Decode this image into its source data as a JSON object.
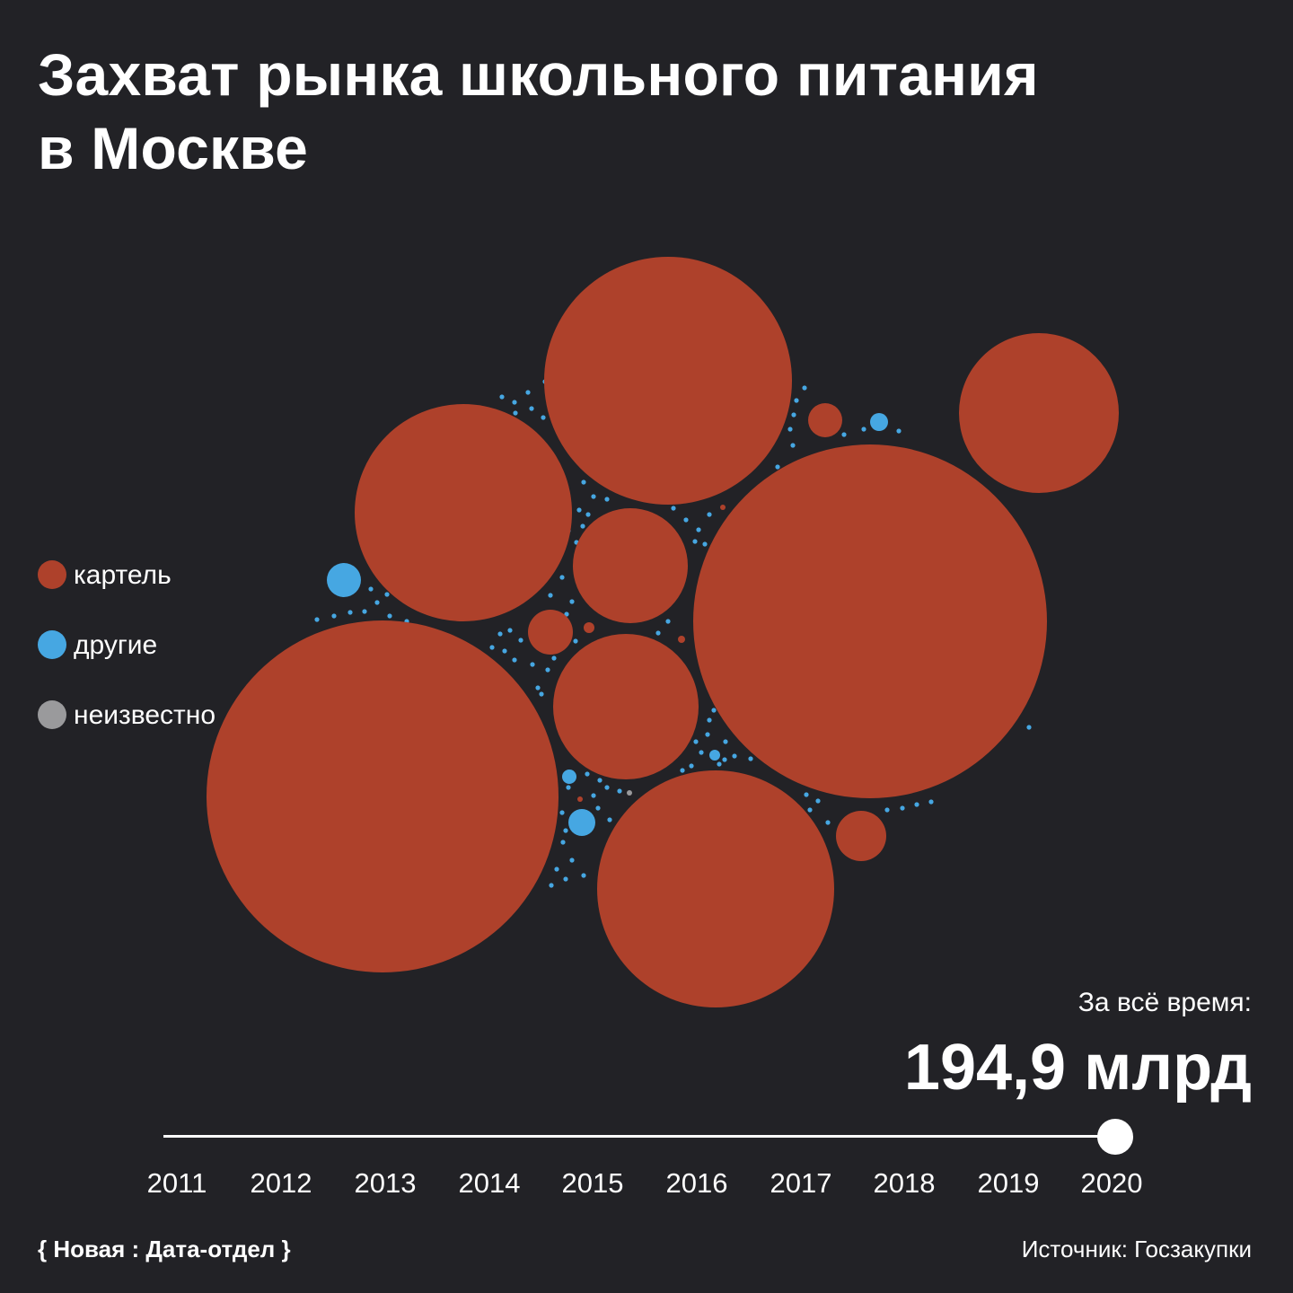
{
  "header": {
    "title_line1": "Захват рынка школьного питания",
    "title_line2": "в Москве"
  },
  "colors": {
    "background": "#222226",
    "cartel": "#ae412b",
    "others": "#46a7e2",
    "unknown": "#9a9a9c",
    "text": "#ffffff"
  },
  "legend": [
    {
      "label": "картель",
      "color": "#ae412b"
    },
    {
      "label": "другие",
      "color": "#46a7e2"
    },
    {
      "label": "неизвестно",
      "color": "#9a9a9c"
    }
  ],
  "total": {
    "label": "За всё время:",
    "value": "194,9 млрд"
  },
  "timeline": {
    "years": [
      "2011",
      "2012",
      "2013",
      "2014",
      "2015",
      "2016",
      "2017",
      "2018",
      "2019",
      "2020"
    ],
    "selected": "2020"
  },
  "footer": {
    "logo": "{ Новая : Дата-отдел }",
    "source": "Источник: Госзакупки"
  },
  "chart_data": {
    "type": "bubble",
    "packing": "packed circles, area proportional to contract volume",
    "categories": [
      "картель",
      "другие",
      "неизвестно"
    ],
    "total_rub": "194,9 млрд",
    "period": "2011–2020",
    "bubble_counts": {
      "картель": 15,
      "другие": 130,
      "неизвестно": 1
    },
    "relative_radius_to_largest": {
      "картель": [
        1.0,
        1.0,
        0.701,
        0.679,
        0.617,
        0.455,
        0.413,
        0.327,
        0.113,
        0.097,
        0.074,
        0.03,
        0.02,
        0.015,
        0.015
      ],
      "другие": [
        0.051,
        0.039,
        0.039,
        0.027,
        0.02
      ]
    }
  }
}
